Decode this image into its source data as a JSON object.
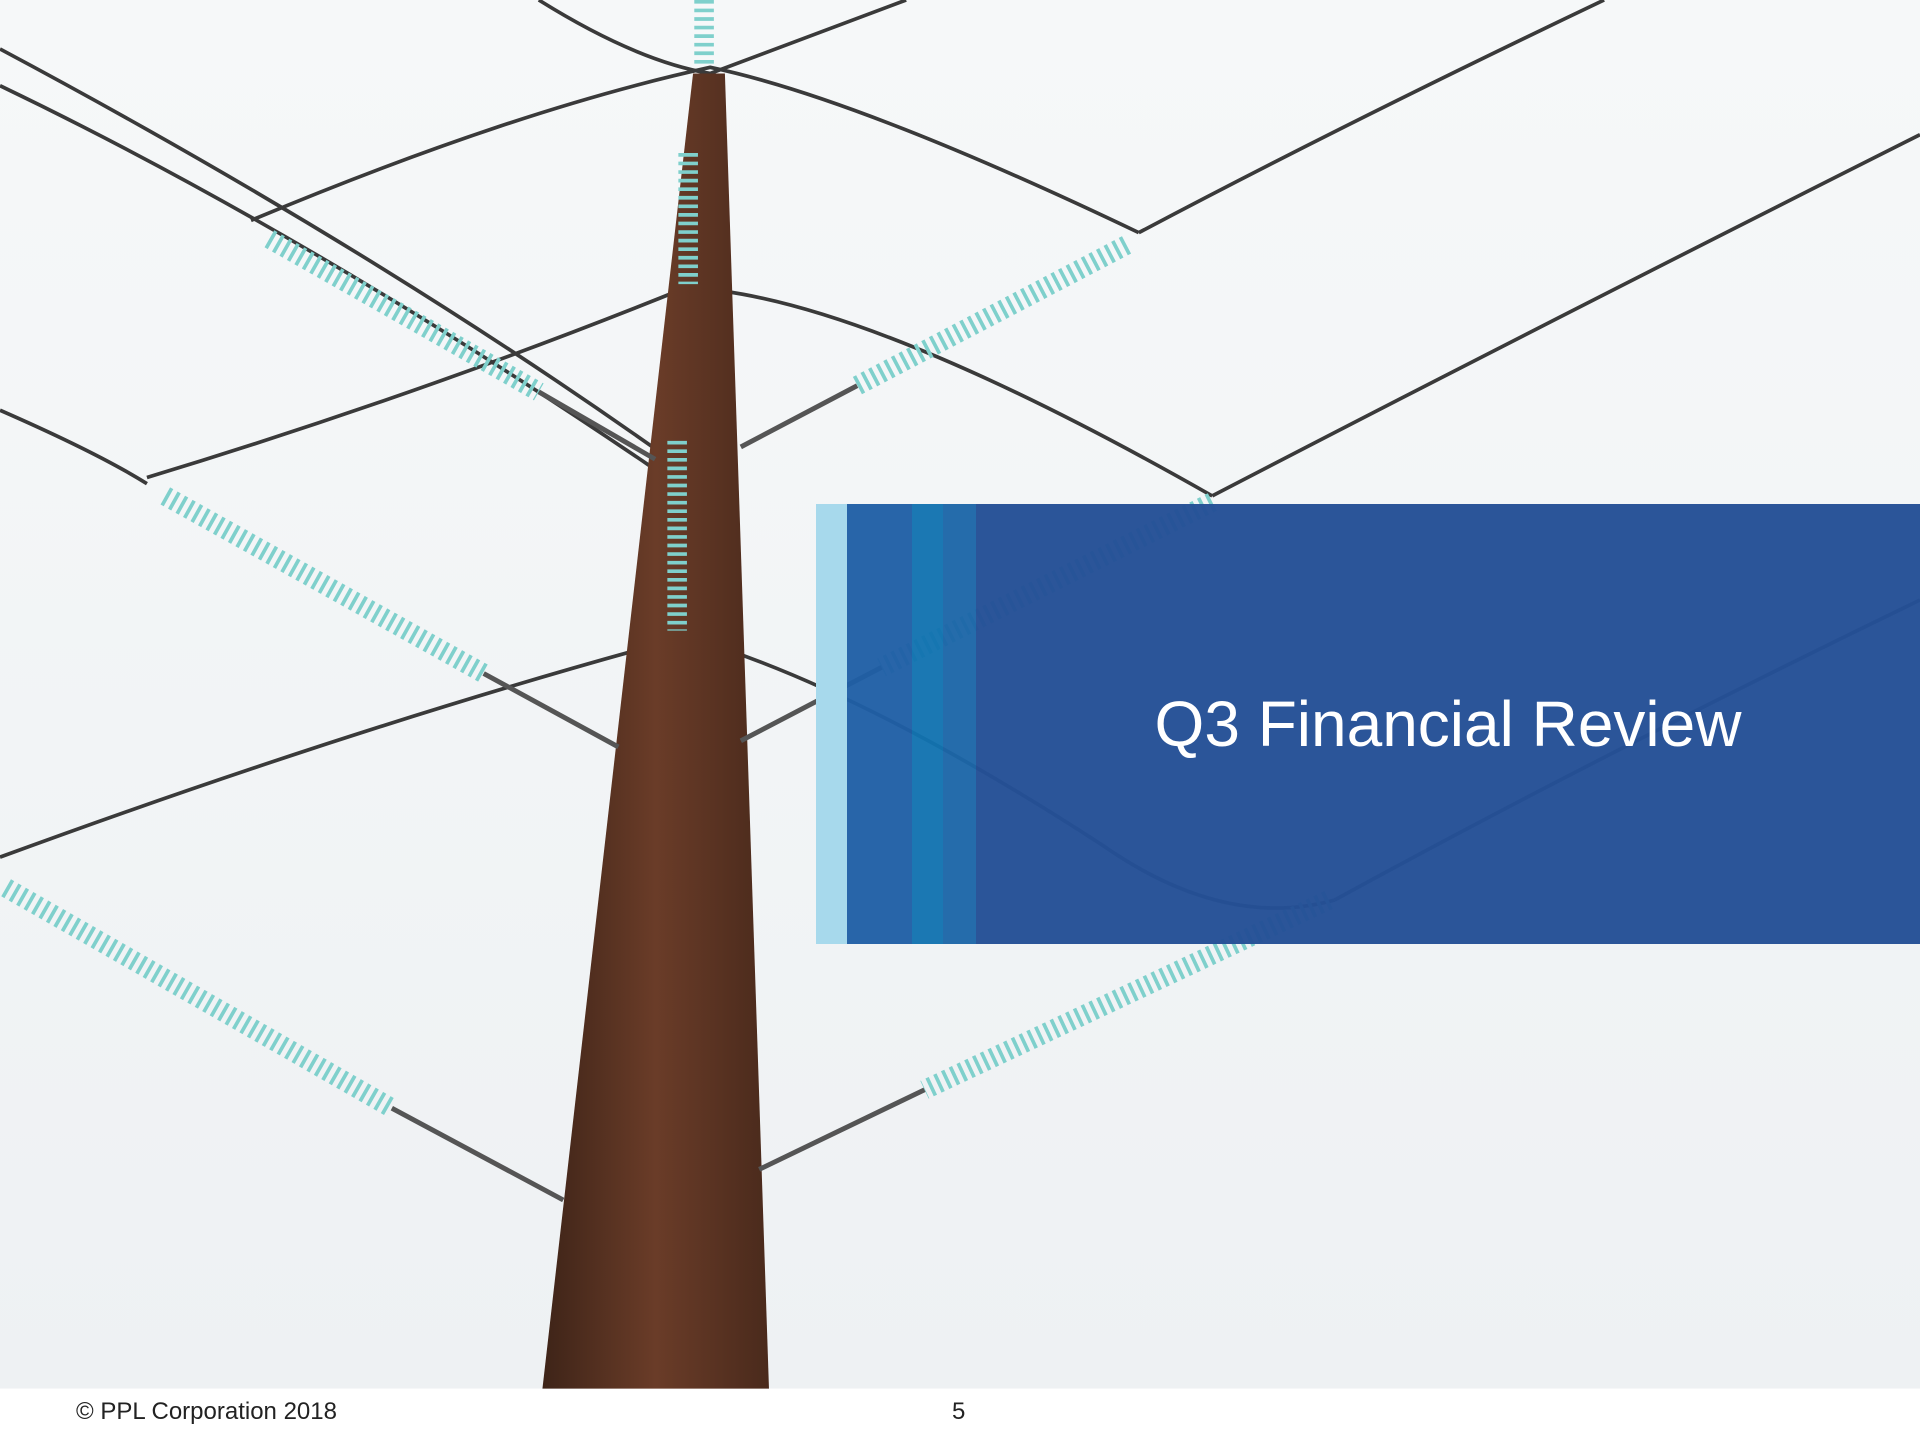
{
  "slide": {
    "title": "Q3 Financial Review",
    "footer": "© PPL Corporation 2018",
    "page_number": "5"
  }
}
